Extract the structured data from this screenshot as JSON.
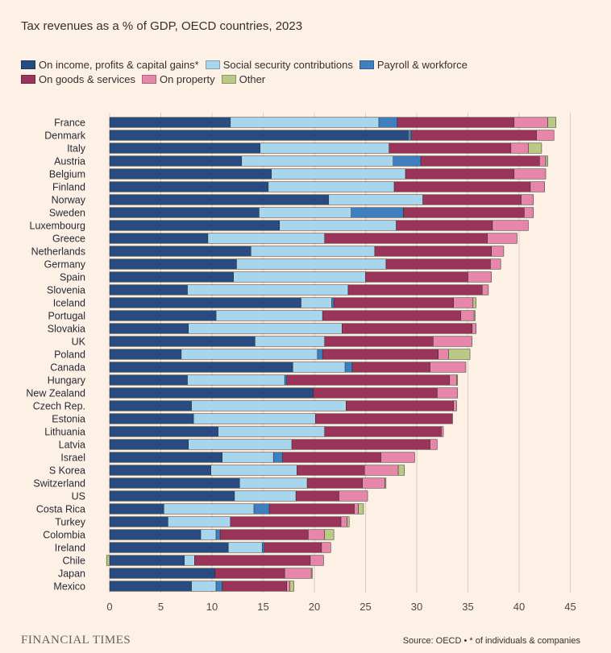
{
  "chart_data": {
    "type": "bar",
    "orientation": "horizontal",
    "stacked": true,
    "title": "Tax revenues as a % of GDP, OECD countries, 2023",
    "xlabel": "",
    "ylabel": "",
    "xlim": [
      0,
      45
    ],
    "xticks": [
      "0",
      "5",
      "10",
      "15",
      "20",
      "25",
      "30",
      "35",
      "40",
      "45"
    ],
    "grid": true,
    "legend_position": "top",
    "categories": [
      "France",
      "Denmark",
      "Italy",
      "Austria",
      "Belgium",
      "Finland",
      "Norway",
      "Sweden",
      "Luxembourg",
      "Greece",
      "Netherlands",
      "Germany",
      "Spain",
      "Slovenia",
      "Iceland",
      "Portugal",
      "Slovakia",
      "UK",
      "Poland",
      "Canada",
      "Hungary",
      "New Zealand",
      "Czech Rep.",
      "Estonia",
      "Lithuania",
      "Latvia",
      "Israel",
      "S Korea",
      "Switzerland",
      "US",
      "Costa Rica",
      "Turkey",
      "Colombia",
      "Ireland",
      "Chile",
      "Japan",
      "Mexico"
    ],
    "series": [
      {
        "name": "On income, profits & capital gains*",
        "color": "#2a4b82",
        "values": [
          11.8,
          29.2,
          14.7,
          12.9,
          15.8,
          15.5,
          21.4,
          14.6,
          16.6,
          9.6,
          13.8,
          12.4,
          12.1,
          7.6,
          18.7,
          10.4,
          7.7,
          14.2,
          7.0,
          17.9,
          7.6,
          19.9,
          8.0,
          8.2,
          10.6,
          7.7,
          11.0,
          9.9,
          12.7,
          12.2,
          5.3,
          5.7,
          8.9,
          11.6,
          7.3,
          10.3,
          8.0
        ]
      },
      {
        "name": "Social security contributions",
        "color": "#a8d6ec",
        "values": [
          14.5,
          0.1,
          12.6,
          14.8,
          13.1,
          12.3,
          9.2,
          9.0,
          11.4,
          11.4,
          12.1,
          14.6,
          12.9,
          15.7,
          3.0,
          10.4,
          15.0,
          6.8,
          13.3,
          5.1,
          9.5,
          0.0,
          15.1,
          11.9,
          10.4,
          10.1,
          5.0,
          8.4,
          6.6,
          6.0,
          8.8,
          6.1,
          1.5,
          3.3,
          1.0,
          0.0,
          2.4
        ]
      },
      {
        "name": "Payroll & workforce",
        "color": "#3f7fc0",
        "values": [
          1.8,
          0.2,
          0.0,
          2.7,
          0.0,
          0.0,
          0.0,
          5.1,
          0.0,
          0.0,
          0.0,
          0.0,
          0.0,
          0.0,
          0.2,
          0.0,
          0.0,
          0.0,
          0.5,
          0.7,
          0.2,
          0.0,
          0.0,
          0.0,
          0.0,
          0.0,
          0.9,
          0.0,
          0.0,
          0.0,
          1.5,
          0.0,
          0.4,
          0.2,
          0.0,
          0.0,
          0.6
        ]
      },
      {
        "name": "On goods & services",
        "color": "#9a3458",
        "values": [
          11.4,
          12.2,
          11.9,
          11.6,
          10.6,
          13.3,
          9.6,
          11.8,
          9.4,
          15.9,
          11.4,
          10.2,
          10.0,
          13.1,
          11.7,
          13.5,
          12.7,
          10.6,
          11.3,
          7.6,
          15.9,
          12.1,
          10.5,
          13.4,
          11.4,
          13.5,
          9.6,
          6.6,
          5.4,
          4.2,
          8.3,
          10.8,
          8.6,
          5.6,
          11.3,
          6.8,
          6.3
        ]
      },
      {
        "name": "On property",
        "color": "#e686a9",
        "values": [
          3.3,
          1.7,
          1.7,
          0.6,
          3.1,
          1.4,
          1.2,
          0.9,
          3.5,
          2.9,
          1.2,
          1.0,
          2.3,
          0.6,
          1.9,
          1.3,
          0.4,
          3.8,
          1.0,
          3.5,
          0.7,
          2.0,
          0.3,
          0.0,
          0.2,
          0.7,
          3.3,
          3.3,
          2.2,
          2.8,
          0.4,
          0.6,
          1.6,
          0.9,
          1.3,
          2.6,
          0.3
        ]
      },
      {
        "name": "Other",
        "color": "#bac985",
        "values": [
          0.8,
          0.0,
          1.3,
          0.2,
          0.0,
          0.0,
          0.0,
          0.0,
          0.0,
          0.0,
          0.0,
          0.0,
          0.0,
          0.0,
          0.3,
          0.1,
          0.0,
          0.0,
          2.1,
          0.0,
          0.1,
          0.0,
          0.0,
          0.0,
          0.0,
          0.0,
          0.0,
          0.6,
          0.1,
          0.0,
          0.5,
          0.2,
          0.9,
          0.0,
          -0.3,
          0.1,
          0.4
        ]
      }
    ]
  },
  "footer": {
    "brand": "FINANCIAL TIMES",
    "source": "Source: OECD • * of individuals & companies"
  }
}
